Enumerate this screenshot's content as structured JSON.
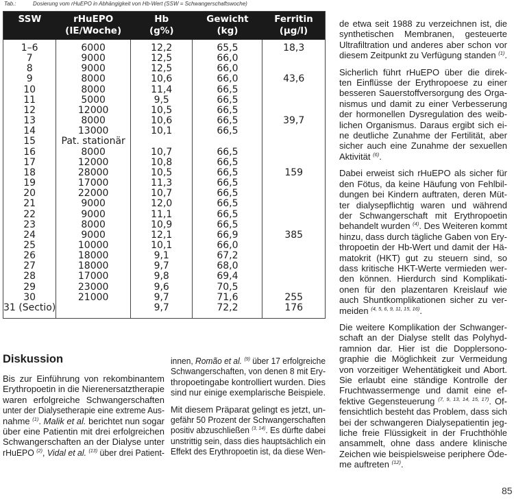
{
  "caption": {
    "label": "Tab.:",
    "text": "Dosierung vom rHuEPO in Abhängigkeit von Hb-Wert (SSW = Schwangerschaftswoche)"
  },
  "table": {
    "headers": [
      {
        "l1": "SSW",
        "l2": ""
      },
      {
        "l1": "rHuEPO",
        "l2": "(IE/Woche)"
      },
      {
        "l1": "Hb",
        "l2": "(g%)"
      },
      {
        "l1": "Gewicht",
        "l2": "(kg)"
      },
      {
        "l1": "Ferritin",
        "l2": "(µg/l)"
      }
    ],
    "rows": [
      [
        "1–6",
        "6000",
        "12,2",
        "65,5",
        "18,3"
      ],
      [
        "7",
        "9000",
        "12,5",
        "66,0",
        ""
      ],
      [
        "8",
        "9000",
        "12,5",
        "66,0",
        ""
      ],
      [
        "9",
        "8000",
        "10,6",
        "66,0",
        "43,6"
      ],
      [
        "10",
        "8000",
        "11,4",
        "66,5",
        ""
      ],
      [
        "11",
        "5000",
        "9,5",
        "66,5",
        ""
      ],
      [
        "12",
        "12000",
        "10,5",
        "66,5",
        ""
      ],
      [
        "13",
        "8000",
        "10,6",
        "66,5",
        "39,7"
      ],
      [
        "14",
        "13000",
        "10,1",
        "66,5",
        ""
      ],
      [
        "15",
        "Pat. stationär",
        "",
        "",
        ""
      ],
      [
        "16",
        "8000",
        "10,7",
        "66,5",
        ""
      ],
      [
        "17",
        "12000",
        "10,8",
        "66,5",
        ""
      ],
      [
        "18",
        "28000",
        "10,5",
        "66,5",
        "159"
      ],
      [
        "19",
        "17000",
        "11,3",
        "66,5",
        ""
      ],
      [
        "20",
        "22000",
        "10,7",
        "66,5",
        ""
      ],
      [
        "21",
        "9000",
        "12,0",
        "66,5",
        ""
      ],
      [
        "22",
        "9000",
        "11,1",
        "66,5",
        ""
      ],
      [
        "23",
        "8000",
        "10,9",
        "66,5",
        ""
      ],
      [
        "24",
        "9000",
        "12,1",
        "66,9",
        "385"
      ],
      [
        "25",
        "10000",
        "10,1",
        "66,0",
        ""
      ],
      [
        "26",
        "18000",
        "9,1",
        "67,2",
        ""
      ],
      [
        "27",
        "18000",
        "9,7",
        "68,0",
        ""
      ],
      [
        "28",
        "17000",
        "9,8",
        "69,4",
        ""
      ],
      [
        "29",
        "23000",
        "9,6",
        "70,5",
        ""
      ],
      [
        "30",
        "21000",
        "9,7",
        "71,6",
        "255"
      ],
      [
        "31 (Sectio)",
        "",
        "9,7",
        "72,2",
        "176"
      ]
    ]
  },
  "heading": "Diskussion",
  "columns": [
    {
      "paragraphs": [
        [
          [
            "Bis zur Einführung von rekombinantem"
          ],
          [
            "Erythropoetin in die Nierenersatztherapie"
          ],
          [
            "waren erfolgreiche Schwangerschaften"
          ],
          [
            "unter der Dialysetherapie eine extreme Aus-"
          ],
          [
            "nahme ",
            {
              "t": "(1)",
              "s": "sup"
            },
            ". ",
            {
              "t": "Malik et al.",
              "s": "i"
            },
            " berichtet nun sogar"
          ],
          [
            "über eine Patientin mit drei erfolgreichen"
          ],
          [
            "Schwangerschaften an der Dialyse unter"
          ],
          [
            "rHuEPO ",
            {
              "t": "(2)",
              "s": "sup"
            },
            ", ",
            {
              "t": "Vidal et al.",
              "s": "i"
            },
            " ",
            {
              "t": "(13)",
              "s": "sup"
            },
            " über drei Patient-"
          ]
        ]
      ]
    },
    {
      "paragraphs": [
        [
          [
            "innen, ",
            {
              "t": "Romão et al.",
              "s": "i"
            },
            " ",
            {
              "t": "(9)",
              "s": "sup"
            },
            " über 17 erfolgreiche"
          ],
          [
            "Schwangerschaften, von denen 8 mit Ery-"
          ],
          [
            "thropoetingabe kontrolliert wurden. Dies"
          ],
          [
            "sind nur einige exemplarische Beispiele."
          ]
        ],
        [
          [
            "Mit diesem Präparat gelingt es jetzt, un-"
          ],
          [
            "gefähr 50 Prozent der Schwangerschaften"
          ],
          [
            "positiv abzuschließen ",
            {
              "t": "(3, 14)",
              "s": "sup"
            },
            ". Es dürfte dabei"
          ],
          [
            "unstrittig sein, dass dies hauptsächlich ein"
          ],
          [
            "Effekt des Erythropoetin ist, da diese Wen-"
          ]
        ]
      ]
    },
    {
      "paragraphs": [
        [
          [
            "de etwa seit 1988 zu verzeichnen ist, die"
          ],
          [
            "synthetischen Membranen, gesteuerte"
          ],
          [
            "Ultrafiltration und anderes aber schon vor"
          ],
          [
            "diesem Zeitpunkt zu Verfügung standen ",
            {
              "t": "(1)",
              "s": "sup"
            },
            "."
          ]
        ],
        [
          [
            "Sicherlich führt rHuEPO über die direk-"
          ],
          [
            "ten Einflüsse der Erythropoese zu einer"
          ],
          [
            "besseren Sauerstoffversorgung des Orga-"
          ],
          [
            "nismus und damit zu einer Verbesserung"
          ],
          [
            "der hormonellen Dysregulation des weib-"
          ],
          [
            "lichen Organismus. Daraus ergibt sich ei-"
          ],
          [
            "ne deutliche Zunahme der Fertilität, aber"
          ],
          [
            "sicher auch eine Zunahme der sexuellen"
          ],
          [
            "Aktivität ",
            {
              "t": "(6)",
              "s": "sup"
            },
            "."
          ]
        ],
        [
          [
            "Dabei erweist sich rHuEPO als sicher für"
          ],
          [
            "den Fötus, da keine Häufung von Fehlbil-"
          ],
          [
            "dungen bei Kindern auftraten, deren Müt-"
          ],
          [
            "ter dialysepflichtig waren und während"
          ],
          [
            "der Schwangerschaft mit Erythropoetin"
          ],
          [
            "behandelt wurden ",
            {
              "t": "(4)",
              "s": "sup"
            },
            ". Des Weiteren kommt"
          ],
          [
            "hinzu, dass durch tägliche Gaben von Ery-"
          ],
          [
            "thropoetin der Hb-Wert und damit der Hä-"
          ],
          [
            "matokrit (HKT) gut zu steuern sind, so"
          ],
          [
            "dass kritische HKT-Werte vermieden wer-"
          ],
          [
            "den können. Hierdurch sind Komplikati-"
          ],
          [
            "onen für den plazentaren Kreislauf wie"
          ],
          [
            "auch Shuntkomplikationen sicher zu ver-"
          ],
          [
            "meiden ",
            {
              "t": "(4, 5, 6, 9, 11, 15, 16)",
              "s": "sup"
            },
            "."
          ]
        ],
        [
          [
            "Die weitere Komplikation der Schwanger-"
          ],
          [
            "schaft an der Dialyse stellt das Polyhyd-"
          ],
          [
            "ramnion dar. Hier ist die Dopplersono-"
          ],
          [
            "graphie die Möglichkeit zur Vermeidung"
          ],
          [
            "von vorzeitiger Wehentätigkeit und Abort."
          ],
          [
            "Sie erlaubt eine ständige Kontrolle der"
          ],
          [
            "Fruchtwassermenge und damit eine ef-"
          ],
          [
            "fektive Gegensteuerung ",
            {
              "t": "(7, 9, 13, 14, 15, 17)",
              "s": "sup"
            },
            ". Of-"
          ],
          [
            "fensichtlich besteht das Problem, dass sich"
          ],
          [
            "bei der schwangeren Dialysepatientin jeg-"
          ],
          [
            "liche freie Flüssigkeit in der Fruchthöhle"
          ],
          [
            "ansammelt, ohne dass andere klinische"
          ],
          [
            "Zeichen wie beispielsweise periphere Öde-"
          ],
          [
            "me auftreten ",
            {
              "t": "(12)",
              "s": "sup"
            },
            "."
          ]
        ]
      ]
    }
  ],
  "footer": {
    "page_number": "85"
  }
}
